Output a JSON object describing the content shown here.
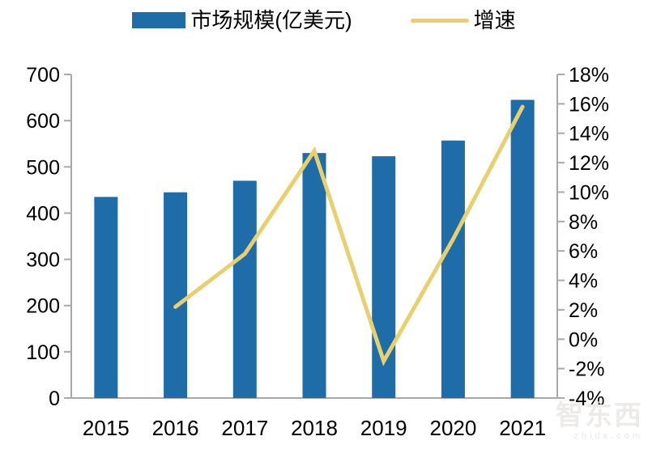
{
  "chart_data": {
    "type": "bar+line",
    "title": "",
    "categories": [
      "2015",
      "2016",
      "2017",
      "2018",
      "2019",
      "2020",
      "2021"
    ],
    "series": [
      {
        "name": "市场规模(亿美元)",
        "type": "bar",
        "axis": "left",
        "color": "#1e6ca8",
        "values": [
          435,
          445,
          470,
          530,
          523,
          557,
          645
        ]
      },
      {
        "name": "增速",
        "type": "line",
        "axis": "right",
        "color": "#e8d06e",
        "values": [
          null,
          2.2,
          5.8,
          12.8,
          -1.5,
          6.8,
          15.8
        ]
      }
    ],
    "left_axis": {
      "min": 0,
      "max": 700,
      "step": 100,
      "tick_labels": [
        "700",
        "600",
        "500",
        "400",
        "300",
        "200",
        "100",
        "0"
      ]
    },
    "right_axis": {
      "min": -4,
      "max": 18,
      "step": 2,
      "tick_labels": [
        "18%",
        "16%",
        "14%",
        "12%",
        "10%",
        "8%",
        "6%",
        "4%",
        "2%",
        "0%",
        "-2%",
        "-4%"
      ]
    },
    "legend_position": "top",
    "grid": false,
    "axis_color": "#a8a8a8",
    "text_color": "#000000"
  },
  "legend": {
    "items": [
      {
        "label": "市场规模(亿美元)",
        "swatch": "bar",
        "color": "#1e6ca8"
      },
      {
        "label": "增速",
        "swatch": "line",
        "color": "#e8d06e"
      }
    ]
  },
  "watermark": {
    "title": "智东西",
    "subtitle": "zhidx.com"
  }
}
